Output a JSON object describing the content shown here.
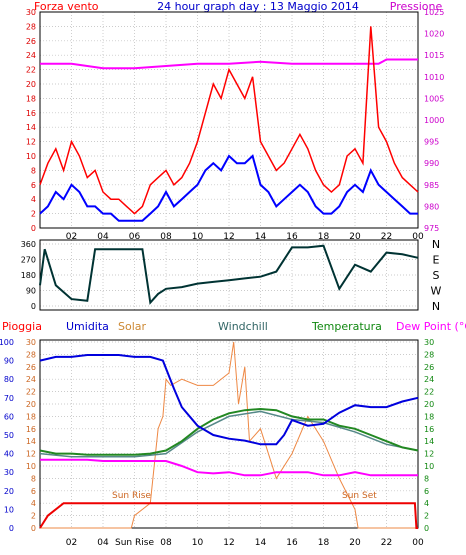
{
  "header": {
    "left_label": "Forza vento",
    "title": "24 hour graph day : 13 Maggio 2014",
    "right_label": "Pressione"
  },
  "legend_bottom": {
    "rain": "Pioggia",
    "humidity": "Umidita",
    "solar": "Solar",
    "windchill": "Windchill",
    "temperature": "Temperatura",
    "dewpoint": "Dew Point (°C)"
  },
  "direction_labels": [
    "N",
    "W",
    "S",
    "E",
    "N"
  ],
  "annotations": {
    "sun_rise": "Sun Rise",
    "sun_set": "Sun Set",
    "sun_rise_axis": "Sun Rise"
  },
  "colors": {
    "wind": "#ff0000",
    "wind_avg": "#0000ff",
    "pressure": "#ff00ff",
    "direction": "#003333",
    "humidity": "#0000dd",
    "solar": "#ee8844",
    "temperature": "#228822",
    "windchill": "#558888",
    "dewpoint": "#ff00ff",
    "rain": "#ee0000",
    "grid": "#bbbbbb"
  },
  "chart_data": [
    {
      "type": "line",
      "name": "wind",
      "x_ticks": [
        "02",
        "04",
        "06",
        "08",
        "10",
        "12",
        "14",
        "16",
        "18",
        "20",
        "22",
        "00"
      ],
      "y_left_ticks": [
        "0",
        "2",
        "4",
        "6",
        "8",
        "10",
        "12",
        "14",
        "16",
        "18",
        "20",
        "22",
        "24",
        "26",
        "28",
        "30"
      ],
      "y_left_range": [
        0,
        30
      ],
      "y_right_ticks": [
        "975",
        "980",
        "985",
        "990",
        "995",
        "1000",
        "1005",
        "1010",
        "1015",
        "1020",
        "1025"
      ],
      "y_right_range": [
        975,
        1025
      ],
      "x_range": [
        0,
        24
      ],
      "gust": {
        "x": [
          0,
          0.5,
          1,
          1.5,
          2,
          2.5,
          3,
          3.5,
          4,
          4.5,
          5,
          5.5,
          6,
          6.5,
          7,
          7.5,
          8,
          8.5,
          9,
          9.5,
          10,
          10.5,
          11,
          11.5,
          12,
          12.5,
          13,
          13.5,
          14,
          14.5,
          15,
          15.5,
          16,
          16.5,
          17,
          17.5,
          18,
          18.5,
          19,
          19.5,
          20,
          20.5,
          21,
          21.5,
          22,
          22.5,
          23,
          23.5,
          24
        ],
        "y": [
          6,
          9,
          11,
          8,
          12,
          10,
          7,
          8,
          5,
          4,
          4,
          3,
          2,
          3,
          6,
          7,
          8,
          6,
          7,
          9,
          12,
          16,
          20,
          18,
          22,
          20,
          18,
          21,
          12,
          10,
          8,
          9,
          11,
          13,
          11,
          8,
          6,
          5,
          6,
          10,
          11,
          9,
          28,
          14,
          12,
          9,
          7,
          6,
          5
        ]
      },
      "average": {
        "x": [
          0,
          0.5,
          1,
          1.5,
          2,
          2.5,
          3,
          3.5,
          4,
          4.5,
          5,
          5.5,
          6,
          6.5,
          7,
          7.5,
          8,
          8.5,
          9,
          9.5,
          10,
          10.5,
          11,
          11.5,
          12,
          12.5,
          13,
          13.5,
          14,
          14.5,
          15,
          15.5,
          16,
          16.5,
          17,
          17.5,
          18,
          18.5,
          19,
          19.5,
          20,
          20.5,
          21,
          21.5,
          22,
          22.5,
          23,
          23.5,
          24
        ],
        "y": [
          2,
          3,
          5,
          4,
          6,
          5,
          3,
          3,
          2,
          2,
          1,
          1,
          1,
          1,
          2,
          3,
          5,
          3,
          4,
          5,
          6,
          8,
          9,
          8,
          10,
          9,
          9,
          10,
          6,
          5,
          3,
          4,
          5,
          6,
          5,
          3,
          2,
          2,
          3,
          5,
          6,
          5,
          8,
          6,
          5,
          4,
          3,
          2,
          2
        ]
      },
      "pressure": {
        "x": [
          0,
          2,
          4,
          6,
          8,
          10,
          12,
          14,
          16,
          18,
          20,
          21.5,
          22,
          24
        ],
        "y": [
          1013,
          1013,
          1012,
          1012,
          1012.5,
          1013,
          1013,
          1013.5,
          1013,
          1013,
          1013,
          1013,
          1014,
          1014
        ]
      }
    },
    {
      "type": "line",
      "name": "direction",
      "y_range": [
        0,
        360
      ],
      "y_ticks": [
        "0",
        "90",
        "180",
        "270",
        "360"
      ],
      "x": [
        0,
        0.3,
        1,
        2,
        3,
        3.5,
        4,
        5,
        6,
        6.5,
        7,
        7.5,
        8,
        9,
        10,
        11,
        12,
        13,
        14,
        15,
        16,
        17,
        18,
        19,
        20,
        21,
        22,
        23,
        24
      ],
      "y": [
        120,
        330,
        120,
        40,
        30,
        330,
        330,
        330,
        330,
        330,
        20,
        70,
        100,
        110,
        130,
        140,
        150,
        160,
        170,
        200,
        340,
        340,
        350,
        100,
        240,
        200,
        310,
        300,
        280
      ]
    },
    {
      "type": "line",
      "name": "climate",
      "y_humidity_ticks": [
        "0",
        "10",
        "20",
        "30",
        "40",
        "50",
        "60",
        "70",
        "80",
        "90",
        "100"
      ],
      "y_humidity_range": [
        0,
        100
      ],
      "y_temp_ticks": [
        "0",
        "2",
        "4",
        "6",
        "8",
        "10",
        "12",
        "14",
        "16",
        "18",
        "20",
        "22",
        "24",
        "26",
        "28",
        "30"
      ],
      "y_temp_range": [
        0,
        30
      ],
      "x_ticks": [
        "02",
        "04",
        "Sun Rise",
        "08",
        "10",
        "12",
        "14",
        "16",
        "18",
        "20",
        "22",
        "00"
      ],
      "humidity": {
        "x": [
          0,
          1,
          2,
          3,
          4,
          5,
          6,
          7,
          7.8,
          8.5,
          9,
          10,
          11,
          12,
          13,
          14,
          15,
          15.5,
          16,
          17,
          18,
          19,
          20,
          21,
          22,
          23,
          24
        ],
        "y": [
          90,
          92,
          92,
          93,
          93,
          93,
          92,
          92,
          90,
          75,
          65,
          55,
          50,
          48,
          47,
          45,
          45,
          50,
          58,
          55,
          56,
          62,
          66,
          65,
          65,
          68,
          70
        ]
      },
      "temperature": {
        "x": [
          0,
          1,
          2,
          3,
          4,
          5,
          6,
          7,
          8,
          9,
          10,
          11,
          12,
          13,
          14,
          15,
          16,
          17,
          18,
          19,
          20,
          21,
          22,
          23,
          24
        ],
        "y": [
          12.5,
          12,
          12,
          11.8,
          11.8,
          11.8,
          11.8,
          12,
          12.5,
          14,
          16,
          17.5,
          18.5,
          19,
          19.2,
          19,
          18,
          17.5,
          17.5,
          16.5,
          16,
          15,
          14,
          13,
          12.5
        ]
      },
      "windchill": {
        "x": [
          0,
          2,
          4,
          6,
          8,
          10,
          12,
          14,
          16,
          18,
          20,
          22,
          24
        ],
        "y": [
          12,
          11.5,
          11.5,
          11.5,
          12,
          15.5,
          18,
          18.8,
          17.5,
          17,
          15.5,
          13.5,
          12.5
        ]
      },
      "dewpoint": {
        "x": [
          0,
          1,
          2,
          3,
          4,
          5,
          6,
          7,
          8,
          9,
          10,
          11,
          12,
          13,
          14,
          15,
          16,
          17,
          18,
          19,
          20,
          21,
          22,
          23,
          24
        ],
        "y": [
          11,
          11,
          11,
          11,
          10.8,
          10.8,
          10.8,
          10.8,
          10.8,
          10,
          9,
          8.8,
          9,
          8.5,
          8.5,
          9,
          9,
          9,
          8.5,
          8.5,
          9,
          8.5,
          8.5,
          8.5,
          8.5
        ]
      },
      "solar": {
        "x": [
          0,
          5.8,
          6,
          7,
          7.5,
          7.8,
          8,
          8.3,
          9,
          10,
          11,
          12,
          12.3,
          12.6,
          13,
          13.3,
          14,
          15,
          16,
          17,
          18,
          19,
          20,
          20.2,
          21,
          24
        ],
        "y": [
          0,
          0,
          2,
          4,
          16,
          18,
          24,
          23,
          24,
          23,
          23,
          25,
          30,
          20,
          26,
          14,
          16,
          8,
          12,
          18,
          14,
          8,
          3,
          0,
          0,
          0
        ]
      },
      "rain": {
        "x": [
          0,
          0.5,
          1.5,
          23.8,
          23.9,
          24
        ],
        "y": [
          0,
          2,
          4,
          4,
          0,
          0
        ]
      }
    }
  ]
}
